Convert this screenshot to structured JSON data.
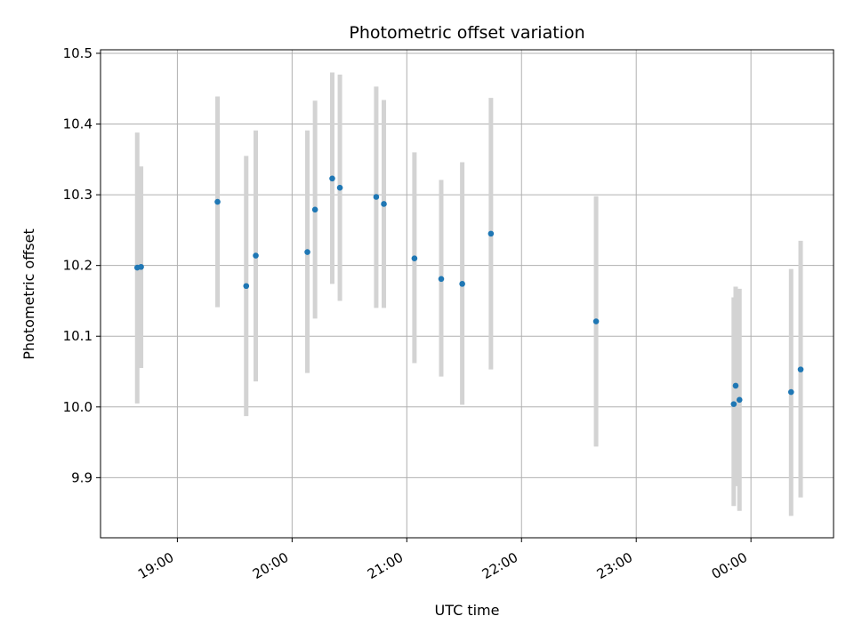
{
  "chart_data": {
    "type": "scatter",
    "title": "Photometric offset variation",
    "xlabel": "UTC time",
    "ylabel": "Photometric offset",
    "x_tick_labels": [
      "19:00",
      "20:00",
      "21:00",
      "22:00",
      "23:00",
      "00:00"
    ],
    "x_tick_hours": [
      19,
      20,
      21,
      22,
      23,
      24
    ],
    "x_range_hours": [
      18.33,
      24.72
    ],
    "y_range": [
      9.815,
      10.505
    ],
    "y_ticks": [
      9.9,
      10.0,
      10.1,
      10.2,
      10.3,
      10.4,
      10.5
    ],
    "grid": true,
    "point_color": "#1f77b4",
    "errorbar_color": "#d3d3d3",
    "points": [
      {
        "time": "18:39",
        "offset": 10.197,
        "low": 10.005,
        "high": 10.388
      },
      {
        "time": "18:41",
        "offset": 10.198,
        "low": 10.055,
        "high": 10.34
      },
      {
        "time": "19:21",
        "offset": 10.29,
        "low": 10.141,
        "high": 10.439
      },
      {
        "time": "19:36",
        "offset": 10.171,
        "low": 9.987,
        "high": 10.355
      },
      {
        "time": "19:41",
        "offset": 10.214,
        "low": 10.036,
        "high": 10.391
      },
      {
        "time": "20:08",
        "offset": 10.219,
        "low": 10.048,
        "high": 10.391
      },
      {
        "time": "20:12",
        "offset": 10.279,
        "low": 10.125,
        "high": 10.433
      },
      {
        "time": "20:21",
        "offset": 10.323,
        "low": 10.174,
        "high": 10.473
      },
      {
        "time": "20:25",
        "offset": 10.31,
        "low": 10.15,
        "high": 10.47
      },
      {
        "time": "20:44",
        "offset": 10.297,
        "low": 10.14,
        "high": 10.453
      },
      {
        "time": "20:48",
        "offset": 10.287,
        "low": 10.14,
        "high": 10.434
      },
      {
        "time": "21:04",
        "offset": 10.21,
        "low": 10.062,
        "high": 10.36
      },
      {
        "time": "21:18",
        "offset": 10.181,
        "low": 10.043,
        "high": 10.321
      },
      {
        "time": "21:29",
        "offset": 10.174,
        "low": 10.003,
        "high": 10.346
      },
      {
        "time": "21:44",
        "offset": 10.245,
        "low": 10.053,
        "high": 10.437
      },
      {
        "time": "22:39",
        "offset": 10.121,
        "low": 9.944,
        "high": 10.298
      },
      {
        "time": "23:51",
        "offset": 10.004,
        "low": 9.86,
        "high": 10.155
      },
      {
        "time": "23:52",
        "offset": 10.03,
        "low": 9.888,
        "high": 10.17
      },
      {
        "time": "23:54",
        "offset": 10.01,
        "low": 9.853,
        "high": 10.167
      },
      {
        "time": "00:21",
        "offset": 10.021,
        "low": 9.846,
        "high": 10.195
      },
      {
        "time": "00:26",
        "offset": 10.053,
        "low": 9.872,
        "high": 10.235
      }
    ]
  }
}
